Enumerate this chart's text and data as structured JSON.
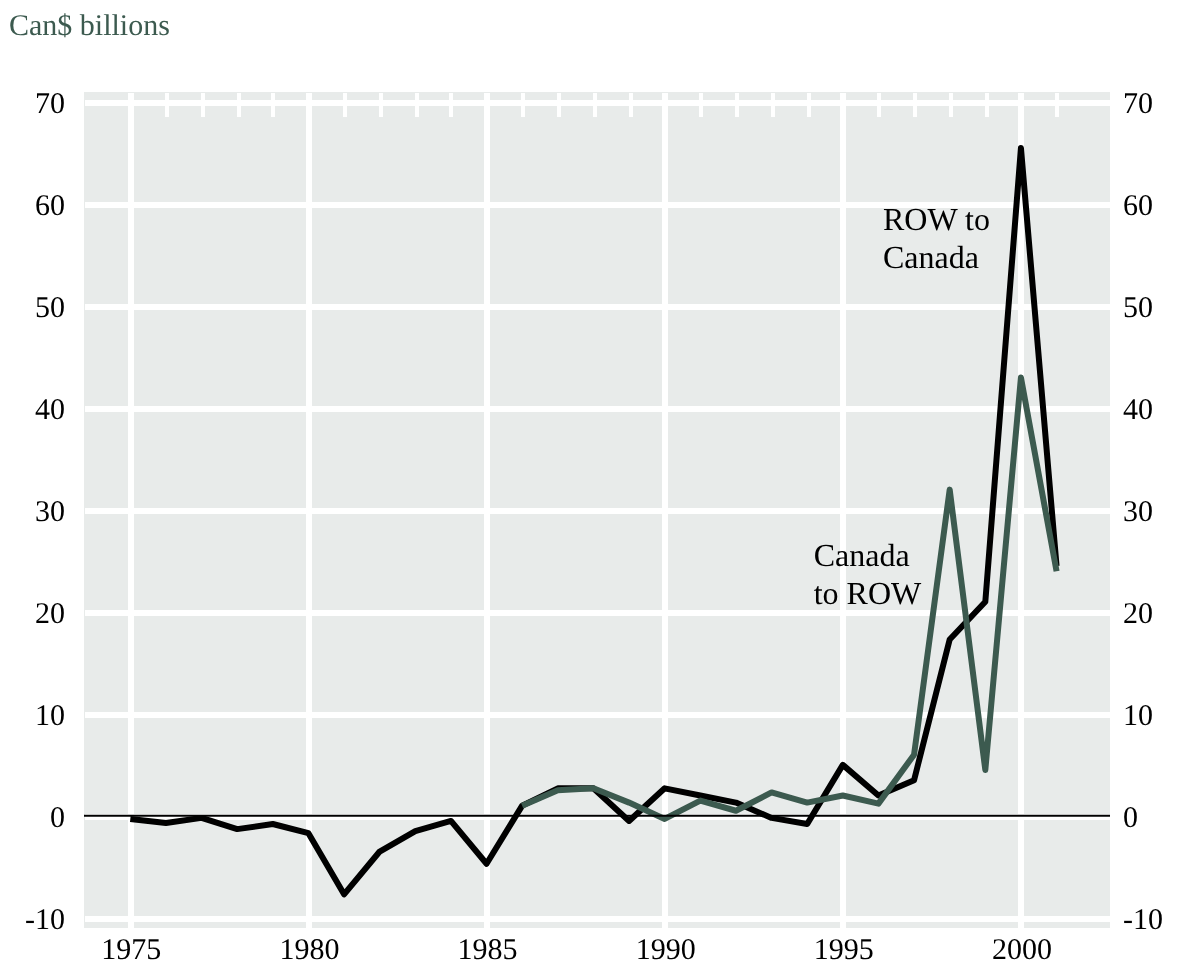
{
  "chart_data": {
    "type": "line",
    "ylabel": "Can$ billions",
    "x": [
      1975,
      1976,
      1977,
      1978,
      1979,
      1980,
      1981,
      1982,
      1983,
      1984,
      1985,
      1986,
      1987,
      1988,
      1989,
      1990,
      1991,
      1992,
      1993,
      1994,
      1995,
      1996,
      1997,
      1998,
      1999,
      2000,
      2001
    ],
    "series": [
      {
        "name": "ROW to Canada",
        "color": "#000000",
        "values": [
          -0.3,
          -0.7,
          -0.2,
          -1.3,
          -0.8,
          -1.7,
          -7.7,
          -3.5,
          -1.5,
          -0.5,
          -4.7,
          1.0,
          2.7,
          2.7,
          -0.5,
          2.7,
          2.0,
          1.3,
          -0.2,
          -0.8,
          5.0,
          2.0,
          3.5,
          17.3,
          21.0,
          65.5,
          24.5
        ]
      },
      {
        "name": "Canada to ROW",
        "color": "#3c5a4f",
        "values": [
          null,
          null,
          null,
          null,
          null,
          null,
          null,
          null,
          null,
          null,
          null,
          1.0,
          2.5,
          2.7,
          1.3,
          -0.3,
          1.5,
          0.5,
          2.3,
          1.3,
          2.0,
          1.2,
          6.0,
          32.0,
          4.5,
          43.0,
          24.0
        ]
      }
    ],
    "xlim": [
      1973.7,
      2002.5
    ],
    "xticks": [
      1975,
      {
        "value": 1976,
        "label": null
      },
      {
        "value": 1977,
        "label": null
      },
      {
        "value": 1978,
        "label": null
      },
      {
        "value": 1979,
        "label": null
      },
      1980,
      {
        "value": 1981,
        "label": null
      },
      {
        "value": 1982,
        "label": null
      },
      {
        "value": 1983,
        "label": null
      },
      {
        "value": 1984,
        "label": null
      },
      1985,
      {
        "value": 1986,
        "label": null
      },
      {
        "value": 1987,
        "label": null
      },
      {
        "value": 1988,
        "label": null
      },
      {
        "value": 1989,
        "label": null
      },
      1990,
      {
        "value": 1991,
        "label": null
      },
      {
        "value": 1992,
        "label": null
      },
      {
        "value": 1993,
        "label": null
      },
      {
        "value": 1994,
        "label": null
      },
      1995,
      {
        "value": 1996,
        "label": null
      },
      {
        "value": 1997,
        "label": null
      },
      {
        "value": 1998,
        "label": null
      },
      {
        "value": 1999,
        "label": null
      },
      2000,
      {
        "value": 2001,
        "label": null
      }
    ],
    "ylim": [
      -11,
      71
    ],
    "yticks": [
      -10,
      0,
      10,
      20,
      30,
      40,
      50,
      60,
      70
    ],
    "y2lim": [
      -11,
      71
    ],
    "y2ticks": [
      -10,
      0,
      10,
      20,
      30,
      40,
      50,
      60,
      70
    ],
    "ref_lines": [
      {
        "axis": "y",
        "value": 0,
        "color": "#000000"
      }
    ],
    "grid": true,
    "legend": false,
    "marker": "none",
    "line_style": "solid"
  }
}
